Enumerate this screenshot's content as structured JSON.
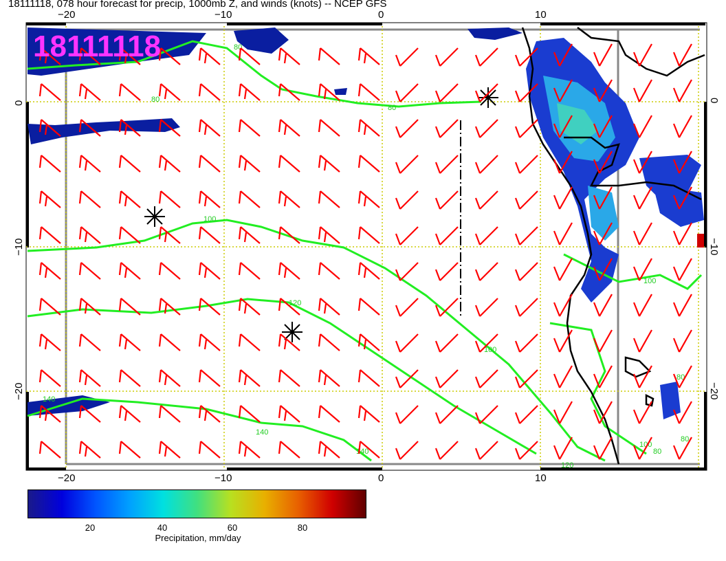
{
  "header": {
    "title": "18111118, 078 hour forecast for precip, 1000mb Z, and winds (knots) -- NCEP GFS"
  },
  "map": {
    "datestamp": "18111118",
    "lon_ticks": [
      "−20",
      "−10",
      "0",
      "10"
    ],
    "lat_ticks": [
      "0",
      "−10",
      "−20"
    ],
    "contour_labels": [
      "80",
      "80",
      "80",
      "100",
      "120",
      "100",
      "140",
      "140",
      "140",
      "120",
      "100",
      "80",
      "80",
      "80",
      "100"
    ],
    "colors": {
      "wind_barb": "#ff0000",
      "contour": "#22ee22",
      "coastline": "#000000",
      "gridline": "#cccc00",
      "datestamp": "#ff33ff"
    }
  },
  "colorbar": {
    "ticks": [
      "20",
      "40",
      "60",
      "80"
    ],
    "label": "Precipitation, mm/day"
  }
}
